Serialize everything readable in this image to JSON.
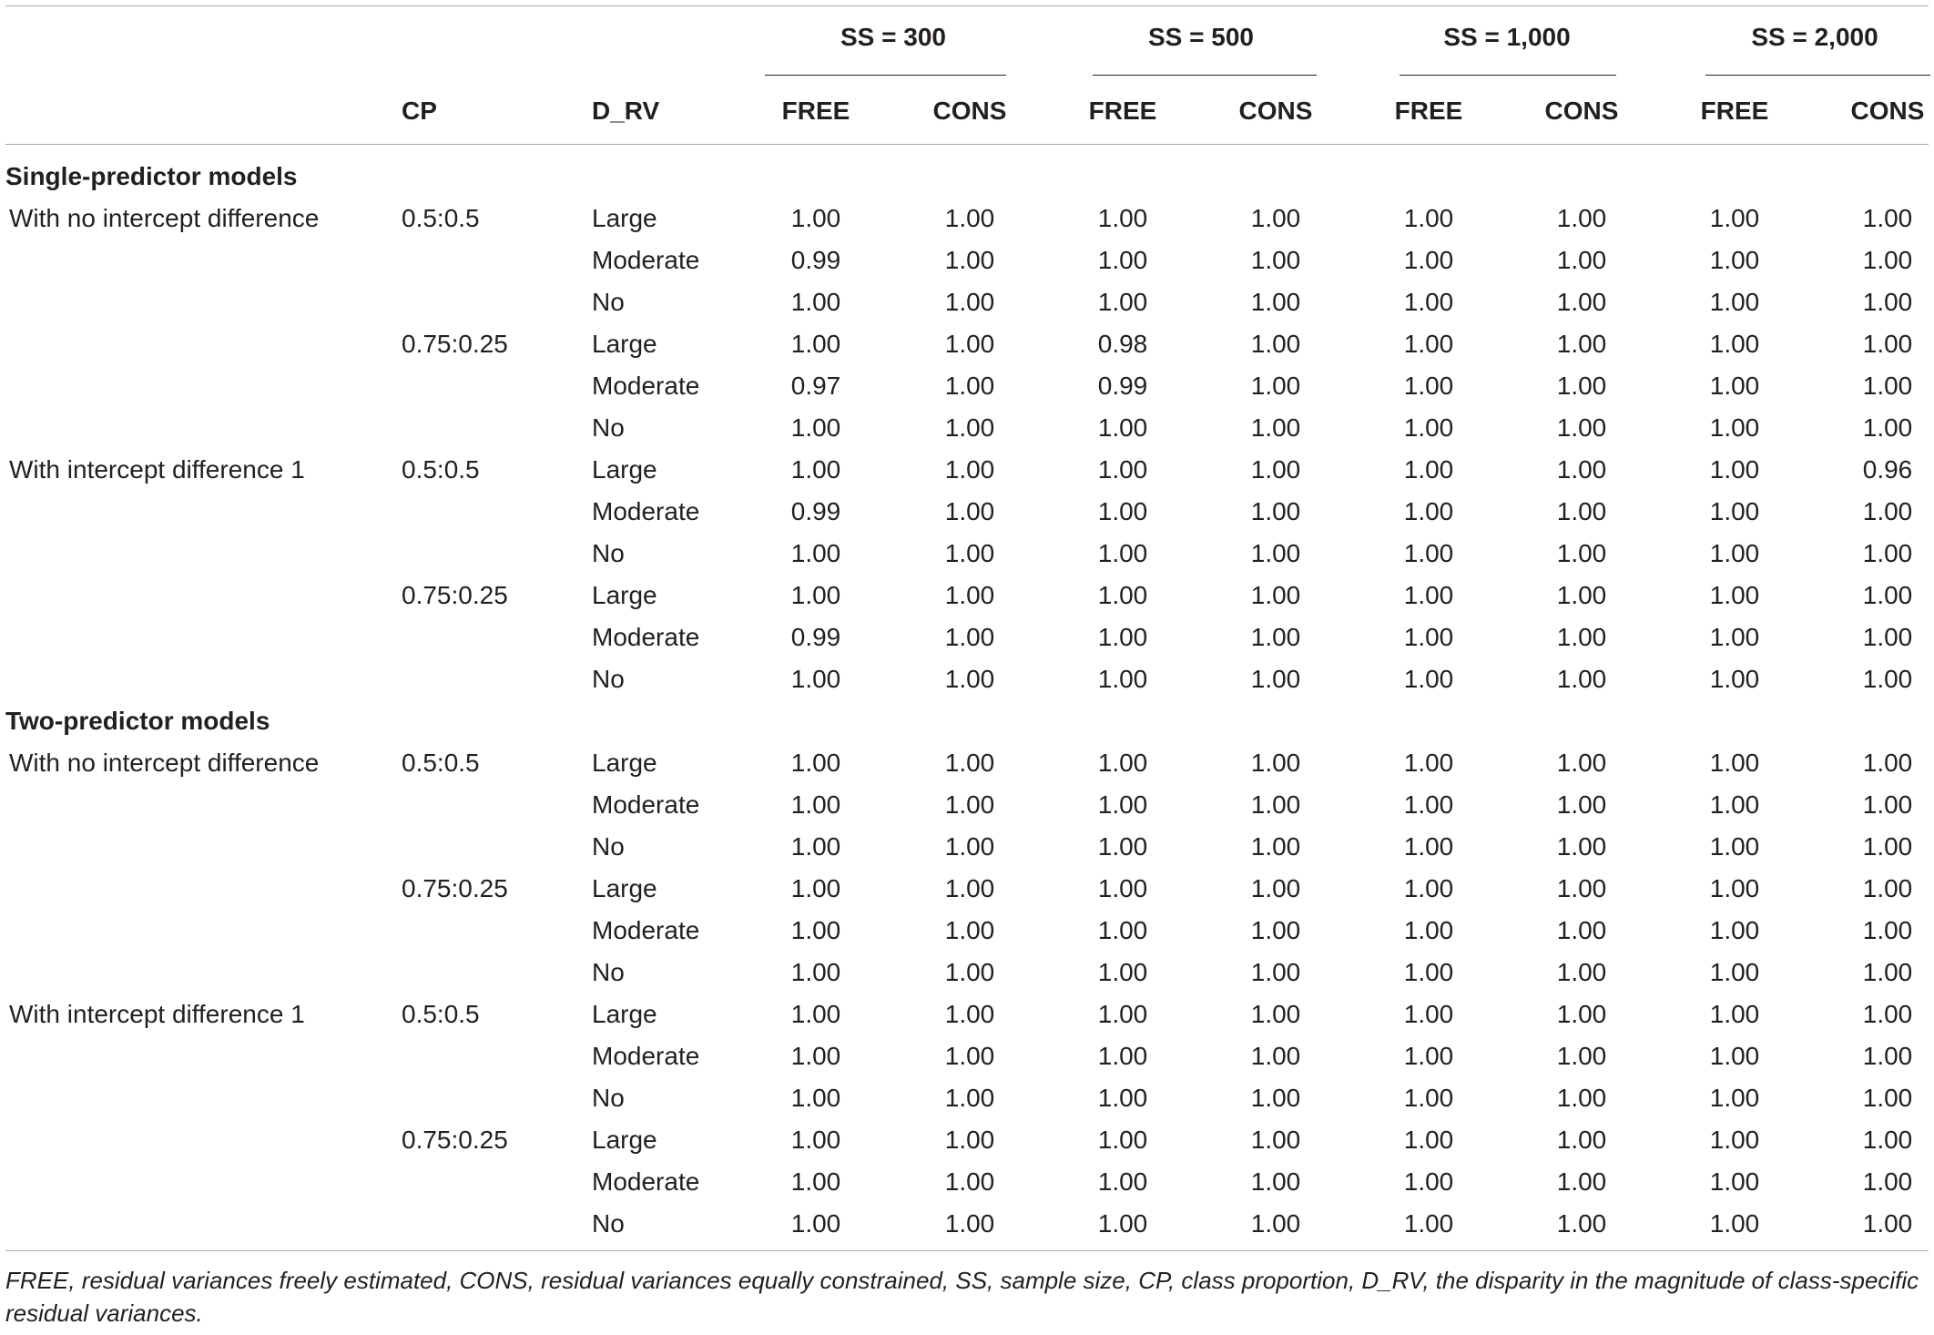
{
  "ss_groups": [
    "SS = 300",
    "SS = 500",
    "SS = 1,000",
    "SS = 2,000"
  ],
  "columns": {
    "cp": "CP",
    "d_rv": "D_RV",
    "subs": [
      "FREE",
      "CONS",
      "FREE",
      "CONS",
      "FREE",
      "CONS",
      "FREE",
      "CONS"
    ]
  },
  "sections": [
    {
      "title": "Single-predictor models",
      "rows": [
        {
          "model": "With no intercept difference",
          "cp": "0.5:0.5",
          "drv": "Large",
          "vals": [
            "1.00",
            "1.00",
            "1.00",
            "1.00",
            "1.00",
            "1.00",
            "1.00",
            "1.00"
          ]
        },
        {
          "model": "",
          "cp": "",
          "drv": "Moderate",
          "vals": [
            "0.99",
            "1.00",
            "1.00",
            "1.00",
            "1.00",
            "1.00",
            "1.00",
            "1.00"
          ]
        },
        {
          "model": "",
          "cp": "",
          "drv": "No",
          "vals": [
            "1.00",
            "1.00",
            "1.00",
            "1.00",
            "1.00",
            "1.00",
            "1.00",
            "1.00"
          ]
        },
        {
          "model": "",
          "cp": "0.75:0.25",
          "drv": "Large",
          "vals": [
            "1.00",
            "1.00",
            "0.98",
            "1.00",
            "1.00",
            "1.00",
            "1.00",
            "1.00"
          ]
        },
        {
          "model": "",
          "cp": "",
          "drv": "Moderate",
          "vals": [
            "0.97",
            "1.00",
            "0.99",
            "1.00",
            "1.00",
            "1.00",
            "1.00",
            "1.00"
          ]
        },
        {
          "model": "",
          "cp": "",
          "drv": "No",
          "vals": [
            "1.00",
            "1.00",
            "1.00",
            "1.00",
            "1.00",
            "1.00",
            "1.00",
            "1.00"
          ]
        },
        {
          "model": "With intercept difference 1",
          "cp": "0.5:0.5",
          "drv": "Large",
          "vals": [
            "1.00",
            "1.00",
            "1.00",
            "1.00",
            "1.00",
            "1.00",
            "1.00",
            "0.96"
          ]
        },
        {
          "model": "",
          "cp": "",
          "drv": "Moderate",
          "vals": [
            "0.99",
            "1.00",
            "1.00",
            "1.00",
            "1.00",
            "1.00",
            "1.00",
            "1.00"
          ]
        },
        {
          "model": "",
          "cp": "",
          "drv": "No",
          "vals": [
            "1.00",
            "1.00",
            "1.00",
            "1.00",
            "1.00",
            "1.00",
            "1.00",
            "1.00"
          ]
        },
        {
          "model": "",
          "cp": "0.75:0.25",
          "drv": "Large",
          "vals": [
            "1.00",
            "1.00",
            "1.00",
            "1.00",
            "1.00",
            "1.00",
            "1.00",
            "1.00"
          ]
        },
        {
          "model": "",
          "cp": "",
          "drv": "Moderate",
          "vals": [
            "0.99",
            "1.00",
            "1.00",
            "1.00",
            "1.00",
            "1.00",
            "1.00",
            "1.00"
          ]
        },
        {
          "model": "",
          "cp": "",
          "drv": "No",
          "vals": [
            "1.00",
            "1.00",
            "1.00",
            "1.00",
            "1.00",
            "1.00",
            "1.00",
            "1.00"
          ]
        }
      ]
    },
    {
      "title": "Two-predictor models",
      "rows": [
        {
          "model": "With no intercept difference",
          "cp": "0.5:0.5",
          "drv": "Large",
          "vals": [
            "1.00",
            "1.00",
            "1.00",
            "1.00",
            "1.00",
            "1.00",
            "1.00",
            "1.00"
          ]
        },
        {
          "model": "",
          "cp": "",
          "drv": "Moderate",
          "vals": [
            "1.00",
            "1.00",
            "1.00",
            "1.00",
            "1.00",
            "1.00",
            "1.00",
            "1.00"
          ]
        },
        {
          "model": "",
          "cp": "",
          "drv": "No",
          "vals": [
            "1.00",
            "1.00",
            "1.00",
            "1.00",
            "1.00",
            "1.00",
            "1.00",
            "1.00"
          ]
        },
        {
          "model": "",
          "cp": "0.75:0.25",
          "drv": "Large",
          "vals": [
            "1.00",
            "1.00",
            "1.00",
            "1.00",
            "1.00",
            "1.00",
            "1.00",
            "1.00"
          ]
        },
        {
          "model": "",
          "cp": "",
          "drv": "Moderate",
          "vals": [
            "1.00",
            "1.00",
            "1.00",
            "1.00",
            "1.00",
            "1.00",
            "1.00",
            "1.00"
          ]
        },
        {
          "model": "",
          "cp": "",
          "drv": "No",
          "vals": [
            "1.00",
            "1.00",
            "1.00",
            "1.00",
            "1.00",
            "1.00",
            "1.00",
            "1.00"
          ]
        },
        {
          "model": "With intercept difference 1",
          "cp": "0.5:0.5",
          "drv": "Large",
          "vals": [
            "1.00",
            "1.00",
            "1.00",
            "1.00",
            "1.00",
            "1.00",
            "1.00",
            "1.00"
          ]
        },
        {
          "model": "",
          "cp": "",
          "drv": "Moderate",
          "vals": [
            "1.00",
            "1.00",
            "1.00",
            "1.00",
            "1.00",
            "1.00",
            "1.00",
            "1.00"
          ]
        },
        {
          "model": "",
          "cp": "",
          "drv": "No",
          "vals": [
            "1.00",
            "1.00",
            "1.00",
            "1.00",
            "1.00",
            "1.00",
            "1.00",
            "1.00"
          ]
        },
        {
          "model": "",
          "cp": "0.75:0.25",
          "drv": "Large",
          "vals": [
            "1.00",
            "1.00",
            "1.00",
            "1.00",
            "1.00",
            "1.00",
            "1.00",
            "1.00"
          ]
        },
        {
          "model": "",
          "cp": "",
          "drv": "Moderate",
          "vals": [
            "1.00",
            "1.00",
            "1.00",
            "1.00",
            "1.00",
            "1.00",
            "1.00",
            "1.00"
          ]
        },
        {
          "model": "",
          "cp": "",
          "drv": "No",
          "vals": [
            "1.00",
            "1.00",
            "1.00",
            "1.00",
            "1.00",
            "1.00",
            "1.00",
            "1.00"
          ]
        }
      ]
    }
  ],
  "footnote": "FREE, residual variances freely estimated, CONS, residual variances equally constrained, SS, sample size, CP, class proportion, D_RV, the disparity in the magnitude of class-specific residual variances."
}
